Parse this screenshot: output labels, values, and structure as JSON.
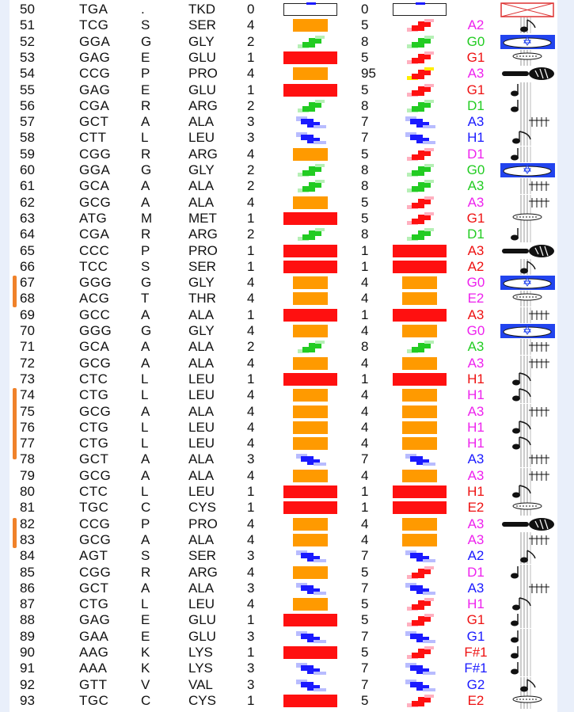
{
  "colors": {
    "red": "#ff1010",
    "orange": "#ff9a00",
    "green": "#22cc22",
    "blue": "#1a1aff",
    "magenta": "#ee22ee",
    "note_red": "#ee1111",
    "side_marker": "#f0822a"
  },
  "rows": [
    {
      "n": "50",
      "codon": "TGA",
      "aa1": ".",
      "aa3": "TKD",
      "v1": "0",
      "box1": "empty",
      "v2": "0",
      "box2": "empty",
      "note": "",
      "note_color": "#000000",
      "symbol": "crossed-box-icon"
    },
    {
      "n": "51",
      "codon": "TCG",
      "aa1": "S",
      "aa3": "SER",
      "v1": "4",
      "box1": "orange",
      "v2": "5",
      "box2": "stair-red",
      "note": "A2",
      "note_color": "#ee22ee",
      "symbol": "eighth-note-icon"
    },
    {
      "n": "52",
      "codon": "GGA",
      "aa1": "G",
      "aa3": "GLY",
      "v1": "2",
      "box1": "stair-green",
      "v2": "8",
      "box2": "stair-green",
      "note": "G0",
      "note_color": "#22cc22",
      "symbol": "drum-icon"
    },
    {
      "n": "53",
      "codon": "GAG",
      "aa1": "E",
      "aa3": "GLU",
      "v1": "1",
      "box1": "red",
      "v2": "5",
      "box2": "stair-red",
      "note": "G1",
      "note_color": "#ee1111",
      "symbol": "cymbal-icon"
    },
    {
      "n": "54",
      "codon": "CCG",
      "aa1": "P",
      "aa3": "PRO",
      "v1": "4",
      "box1": "orange",
      "v2": "95",
      "box2": "stair-yellow",
      "note": "A3",
      "note_color": "#ee22ee",
      "symbol": "maraca-icon"
    },
    {
      "n": "55",
      "codon": "GAG",
      "aa1": "E",
      "aa3": "GLU",
      "v1": "1",
      "box1": "red",
      "v2": "5",
      "box2": "stair-red",
      "note": "G1",
      "note_color": "#ee1111",
      "symbol": "quarter-note-icon"
    },
    {
      "n": "56",
      "codon": "CGA",
      "aa1": "R",
      "aa3": "ARG",
      "v1": "2",
      "box1": "stair-green",
      "v2": "8",
      "box2": "stair-green",
      "note": "D1",
      "note_color": "#22cc22",
      "symbol": "quarter-note-icon"
    },
    {
      "n": "57",
      "codon": "GCT",
      "aa1": "A",
      "aa3": "ALA",
      "v1": "3",
      "box1": "stair-blue",
      "v2": "7",
      "box2": "stair-blue",
      "note": "A3",
      "note_color": "#1a1aff",
      "symbol": "chord-icon"
    },
    {
      "n": "58",
      "codon": "CTT",
      "aa1": "L",
      "aa3": "LEU",
      "v1": "3",
      "box1": "stair-blue",
      "v2": "7",
      "box2": "stair-blue",
      "note": "H1",
      "note_color": "#1a1aff",
      "symbol": "flag-note-icon"
    },
    {
      "n": "59",
      "codon": "CGG",
      "aa1": "R",
      "aa3": "ARG",
      "v1": "4",
      "box1": "orange",
      "v2": "5",
      "box2": "stair-red",
      "note": "D1",
      "note_color": "#ee22ee",
      "symbol": "quarter-note-icon"
    },
    {
      "n": "60",
      "codon": "GGA",
      "aa1": "G",
      "aa3": "GLY",
      "v1": "2",
      "box1": "stair-green",
      "v2": "8",
      "box2": "stair-green",
      "note": "G0",
      "note_color": "#22cc22",
      "symbol": "drum-icon"
    },
    {
      "n": "61",
      "codon": "GCA",
      "aa1": "A",
      "aa3": "ALA",
      "v1": "2",
      "box1": "stair-green",
      "v2": "8",
      "box2": "stair-green",
      "note": "A3",
      "note_color": "#22cc22",
      "symbol": "chord-icon"
    },
    {
      "n": "62",
      "codon": "GCG",
      "aa1": "A",
      "aa3": "ALA",
      "v1": "4",
      "box1": "orange",
      "v2": "5",
      "box2": "stair-red",
      "note": "A3",
      "note_color": "#ee22ee",
      "symbol": "chord-icon"
    },
    {
      "n": "63",
      "codon": "ATG",
      "aa1": "M",
      "aa3": "MET",
      "v1": "1",
      "box1": "red",
      "v2": "5",
      "box2": "stair-red",
      "note": "G1",
      "note_color": "#ee1111",
      "symbol": "cymbal-icon"
    },
    {
      "n": "64",
      "codon": "CGA",
      "aa1": "R",
      "aa3": "ARG",
      "v1": "2",
      "box1": "stair-green",
      "v2": "8",
      "box2": "stair-green",
      "note": "D1",
      "note_color": "#22cc22",
      "symbol": "quarter-note-icon"
    },
    {
      "n": "65",
      "codon": "CCC",
      "aa1": "P",
      "aa3": "PRO",
      "v1": "1",
      "box1": "red",
      "v2": "1",
      "box2": "red",
      "note": "A3",
      "note_color": "#ee1111",
      "symbol": "maraca-icon"
    },
    {
      "n": "66",
      "codon": "TCC",
      "aa1": "S",
      "aa3": "SER",
      "v1": "1",
      "box1": "red",
      "v2": "1",
      "box2": "red",
      "note": "A2",
      "note_color": "#ee1111",
      "symbol": "eighth-note-icon"
    },
    {
      "n": "67",
      "codon": "GGG",
      "aa1": "G",
      "aa3": "GLY",
      "v1": "4",
      "box1": "orange",
      "v2": "4",
      "box2": "orange",
      "note": "G0",
      "note_color": "#ee22ee",
      "symbol": "drum-icon"
    },
    {
      "n": "68",
      "codon": "ACG",
      "aa1": "T",
      "aa3": "THR",
      "v1": "4",
      "box1": "orange",
      "v2": "4",
      "box2": "orange",
      "note": "E2",
      "note_color": "#ee22ee",
      "symbol": "cymbal-icon"
    },
    {
      "n": "69",
      "codon": "GCC",
      "aa1": "A",
      "aa3": "ALA",
      "v1": "1",
      "box1": "red",
      "v2": "1",
      "box2": "red",
      "note": "A3",
      "note_color": "#ee1111",
      "symbol": "chord-icon"
    },
    {
      "n": "70",
      "codon": "GGG",
      "aa1": "G",
      "aa3": "GLY",
      "v1": "4",
      "box1": "orange",
      "v2": "4",
      "box2": "orange",
      "note": "G0",
      "note_color": "#ee22ee",
      "symbol": "drum-icon"
    },
    {
      "n": "71",
      "codon": "GCA",
      "aa1": "A",
      "aa3": "ALA",
      "v1": "2",
      "box1": "stair-green",
      "v2": "8",
      "box2": "stair-green",
      "note": "A3",
      "note_color": "#22cc22",
      "symbol": "chord-icon"
    },
    {
      "n": "72",
      "codon": "GCG",
      "aa1": "A",
      "aa3": "ALA",
      "v1": "4",
      "box1": "orange",
      "v2": "4",
      "box2": "orange",
      "note": "A3",
      "note_color": "#ee22ee",
      "symbol": "chord-icon"
    },
    {
      "n": "73",
      "codon": "CTC",
      "aa1": "L",
      "aa3": "LEU",
      "v1": "1",
      "box1": "red",
      "v2": "1",
      "box2": "red",
      "note": "H1",
      "note_color": "#ee1111",
      "symbol": "flag-note-icon"
    },
    {
      "n": "74",
      "codon": "CTG",
      "aa1": "L",
      "aa3": "LEU",
      "v1": "4",
      "box1": "orange",
      "v2": "4",
      "box2": "orange",
      "note": "H1",
      "note_color": "#ee22ee",
      "symbol": "flag-note-icon"
    },
    {
      "n": "75",
      "codon": "GCG",
      "aa1": "A",
      "aa3": "ALA",
      "v1": "4",
      "box1": "orange",
      "v2": "4",
      "box2": "orange",
      "note": "A3",
      "note_color": "#ee22ee",
      "symbol": "chord-icon"
    },
    {
      "n": "76",
      "codon": "CTG",
      "aa1": "L",
      "aa3": "LEU",
      "v1": "4",
      "box1": "orange",
      "v2": "4",
      "box2": "orange",
      "note": "H1",
      "note_color": "#ee22ee",
      "symbol": "flag-note-icon"
    },
    {
      "n": "77",
      "codon": "CTG",
      "aa1": "L",
      "aa3": "LEU",
      "v1": "4",
      "box1": "orange",
      "v2": "4",
      "box2": "orange",
      "note": "H1",
      "note_color": "#ee22ee",
      "symbol": "flag-note-icon"
    },
    {
      "n": "78",
      "codon": "GCT",
      "aa1": "A",
      "aa3": "ALA",
      "v1": "3",
      "box1": "stair-blue",
      "v2": "7",
      "box2": "stair-blue",
      "note": "A3",
      "note_color": "#1a1aff",
      "symbol": "chord-icon"
    },
    {
      "n": "79",
      "codon": "GCG",
      "aa1": "A",
      "aa3": "ALA",
      "v1": "4",
      "box1": "orange",
      "v2": "4",
      "box2": "orange",
      "note": "A3",
      "note_color": "#ee22ee",
      "symbol": "chord-icon"
    },
    {
      "n": "80",
      "codon": "CTC",
      "aa1": "L",
      "aa3": "LEU",
      "v1": "1",
      "box1": "red",
      "v2": "1",
      "box2": "red",
      "note": "H1",
      "note_color": "#ee1111",
      "symbol": "flag-note-icon"
    },
    {
      "n": "81",
      "codon": "TGC",
      "aa1": "C",
      "aa3": "CYS",
      "v1": "1",
      "box1": "red",
      "v2": "1",
      "box2": "red",
      "note": "E2",
      "note_color": "#ee1111",
      "symbol": "cymbal-icon"
    },
    {
      "n": "82",
      "codon": "CCG",
      "aa1": "P",
      "aa3": "PRO",
      "v1": "4",
      "box1": "orange",
      "v2": "4",
      "box2": "orange",
      "note": "A3",
      "note_color": "#ee22ee",
      "symbol": "maraca-icon"
    },
    {
      "n": "83",
      "codon": "GCG",
      "aa1": "A",
      "aa3": "ALA",
      "v1": "4",
      "box1": "orange",
      "v2": "4",
      "box2": "orange",
      "note": "A3",
      "note_color": "#ee22ee",
      "symbol": "chord-icon"
    },
    {
      "n": "84",
      "codon": "AGT",
      "aa1": "S",
      "aa3": "SER",
      "v1": "3",
      "box1": "stair-blue",
      "v2": "7",
      "box2": "stair-blue",
      "note": "A2",
      "note_color": "#1a1aff",
      "symbol": "eighth-note-icon"
    },
    {
      "n": "85",
      "codon": "CGG",
      "aa1": "R",
      "aa3": "ARG",
      "v1": "4",
      "box1": "orange",
      "v2": "5",
      "box2": "stair-red",
      "note": "D1",
      "note_color": "#ee22ee",
      "symbol": "quarter-note-icon"
    },
    {
      "n": "86",
      "codon": "GCT",
      "aa1": "A",
      "aa3": "ALA",
      "v1": "3",
      "box1": "stair-blue",
      "v2": "7",
      "box2": "stair-blue",
      "note": "A3",
      "note_color": "#1a1aff",
      "symbol": "chord-icon"
    },
    {
      "n": "87",
      "codon": "CTG",
      "aa1": "L",
      "aa3": "LEU",
      "v1": "4",
      "box1": "orange",
      "v2": "5",
      "box2": "stair-red",
      "note": "H1",
      "note_color": "#ee22ee",
      "symbol": "flag-note-icon"
    },
    {
      "n": "88",
      "codon": "GAG",
      "aa1": "E",
      "aa3": "GLU",
      "v1": "1",
      "box1": "red",
      "v2": "5",
      "box2": "stair-red",
      "note": "G1",
      "note_color": "#ee1111",
      "symbol": "quarter-note-icon"
    },
    {
      "n": "89",
      "codon": "GAA",
      "aa1": "E",
      "aa3": "GLU",
      "v1": "3",
      "box1": "stair-blue",
      "v2": "7",
      "box2": "stair-blue",
      "note": "G1",
      "note_color": "#1a1aff",
      "symbol": "quarter-note-icon"
    },
    {
      "n": "90",
      "codon": "AAG",
      "aa1": "K",
      "aa3": "LYS",
      "v1": "1",
      "box1": "red",
      "v2": "5",
      "box2": "stair-red",
      "note": "F#1",
      "note_color": "#ee1111",
      "symbol": "quarter-note-icon"
    },
    {
      "n": "91",
      "codon": "AAA",
      "aa1": "K",
      "aa3": "LYS",
      "v1": "3",
      "box1": "stair-blue",
      "v2": "7",
      "box2": "stair-blue",
      "note": "F#1",
      "note_color": "#1a1aff",
      "symbol": "quarter-note-icon"
    },
    {
      "n": "92",
      "codon": "GTT",
      "aa1": "V",
      "aa3": "VAL",
      "v1": "3",
      "box1": "stair-blue",
      "v2": "7",
      "box2": "stair-blue",
      "note": "G2",
      "note_color": "#1a1aff",
      "symbol": "eighth-note-icon"
    },
    {
      "n": "93",
      "codon": "TGC",
      "aa1": "C",
      "aa3": "CYS",
      "v1": "1",
      "box1": "red",
      "v2": "5",
      "box2": "stair-red",
      "note": "E2",
      "note_color": "#ee1111",
      "symbol": "cymbal-icon"
    }
  ]
}
